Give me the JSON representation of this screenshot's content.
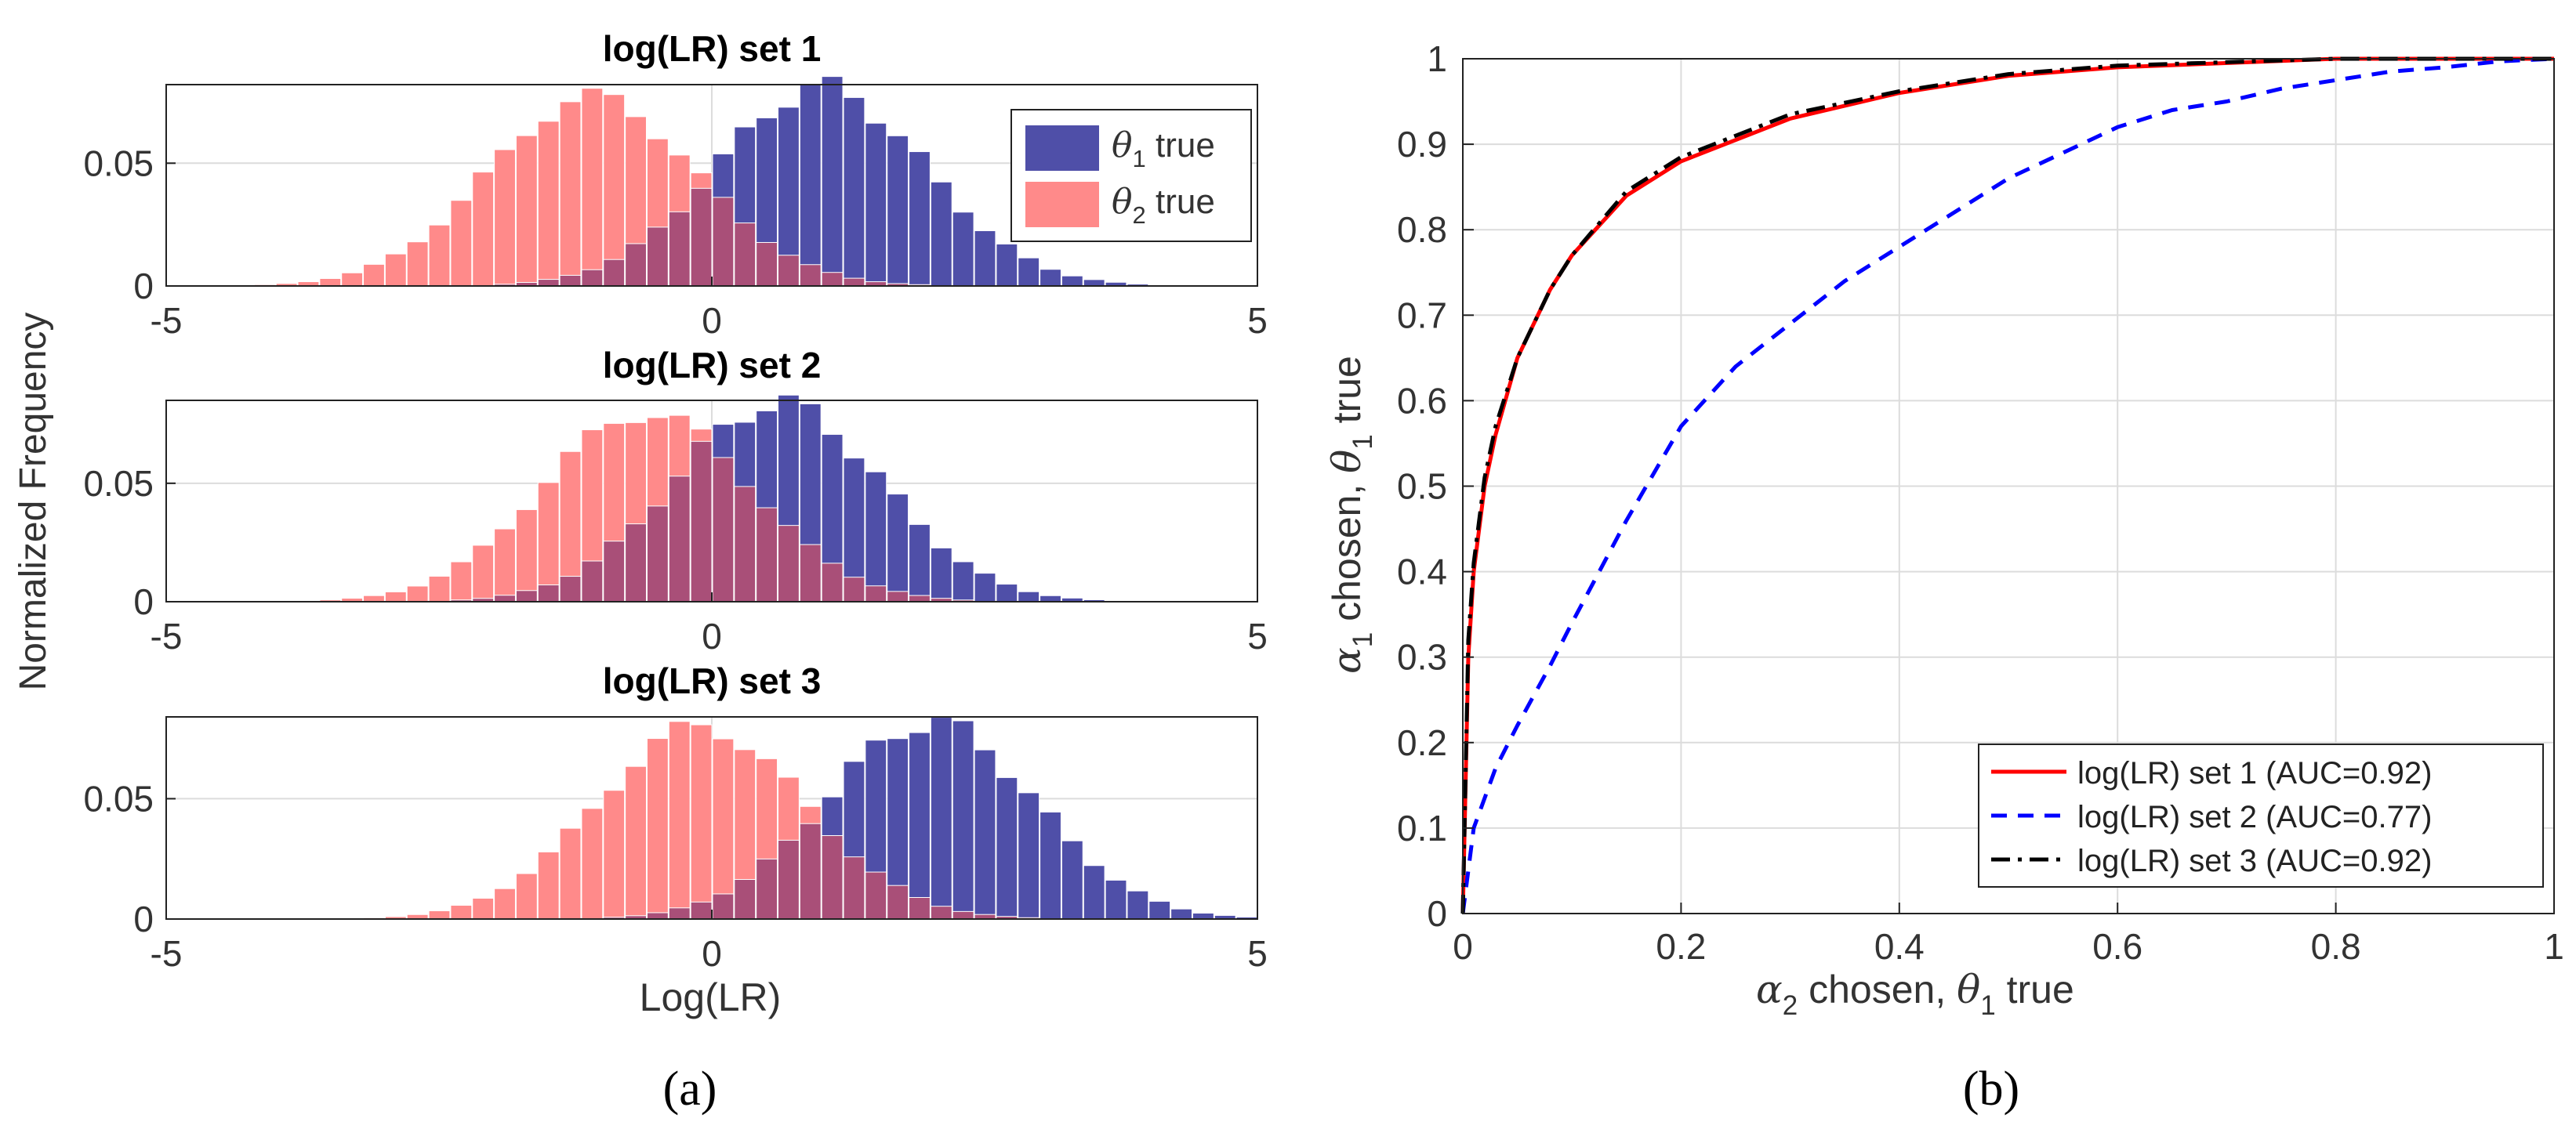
{
  "figure": {
    "panel_a_label": "(a)",
    "panel_b_label": "(b)",
    "ylabel_shared_a": "Normalized Frequency",
    "xlabel_a": "Log(LR)"
  },
  "colors": {
    "theta1": "#4f4fa8",
    "theta2": "#ff8a8a",
    "overlap": "#a94f78",
    "set1": "#ff0000",
    "set2": "#0000ff",
    "set3": "#000000",
    "grid": "#dcdcdc"
  },
  "chart_data": [
    {
      "type": "bar",
      "title": "log(LR) set 1",
      "xlim": [
        -5,
        5
      ],
      "ylim": [
        0,
        0.082
      ],
      "xticks": [
        -5,
        0,
        5
      ],
      "yticks": [
        0,
        0.05
      ],
      "ytick_labels": [
        "0",
        "0.05"
      ],
      "bin_width": 0.2,
      "legend": [
        "θ1 true",
        "θ2 true"
      ],
      "legend_position": "top-right",
      "series": [
        {
          "name": "θ1 true",
          "mean": 1.0,
          "sd": 0.95,
          "peak": 0.081
        },
        {
          "name": "θ2 true",
          "mean": -1.1,
          "sd": 0.95,
          "peak": 0.077
        }
      ]
    },
    {
      "type": "bar",
      "title": "log(LR) set 2",
      "xlim": [
        -5,
        5
      ],
      "ylim": [
        0,
        0.085
      ],
      "xticks": [
        -5,
        0,
        5
      ],
      "yticks": [
        0,
        0.05
      ],
      "ytick_labels": [
        "0",
        "0.05"
      ],
      "bin_width": 0.2,
      "series": [
        {
          "name": "θ1 true",
          "mean": 0.6,
          "sd": 0.95,
          "peak": 0.084
        },
        {
          "name": "θ2 true",
          "mean": -0.6,
          "sd": 0.95,
          "peak": 0.08
        }
      ]
    },
    {
      "type": "bar",
      "title": "log(LR) set 3",
      "xlim": [
        -5,
        5
      ],
      "ylim": [
        0,
        0.084
      ],
      "xticks": [
        -5,
        0,
        5
      ],
      "yticks": [
        0,
        0.05
      ],
      "ytick_labels": [
        "0",
        "0.05"
      ],
      "bin_width": 0.2,
      "series": [
        {
          "name": "θ1 true",
          "mean": 2.0,
          "sd": 0.95,
          "peak": 0.082
        },
        {
          "name": "θ2 true",
          "mean": -0.1,
          "sd": 0.95,
          "peak": 0.08
        }
      ]
    },
    {
      "type": "line",
      "title": "",
      "xlabel": "α2 chosen, θ1 true",
      "ylabel": "α1 chosen, θ1 true",
      "xlim": [
        0,
        1
      ],
      "ylim": [
        0,
        1
      ],
      "xticks": [
        0,
        0.2,
        0.4,
        0.6,
        0.8,
        1
      ],
      "xtick_labels": [
        "0",
        "0.2",
        "0.4",
        "0.6",
        "0.8",
        "1"
      ],
      "yticks": [
        0,
        0.1,
        0.2,
        0.3,
        0.4,
        0.5,
        0.6,
        0.7,
        0.8,
        0.9,
        1
      ],
      "ytick_labels": [
        "0",
        "0.1",
        "0.2",
        "0.3",
        "0.4",
        "0.5",
        "0.6",
        "0.7",
        "0.8",
        "0.9",
        "1"
      ],
      "grid": true,
      "legend_position": "bottom-right",
      "series": [
        {
          "name": "log(LR) set 1 (AUC=0.92)",
          "style": "solid",
          "x": [
            0,
            0.005,
            0.01,
            0.02,
            0.03,
            0.05,
            0.08,
            0.1,
            0.15,
            0.2,
            0.3,
            0.4,
            0.5,
            0.6,
            0.8,
            1
          ],
          "y": [
            0,
            0.3,
            0.4,
            0.5,
            0.56,
            0.65,
            0.73,
            0.77,
            0.84,
            0.88,
            0.93,
            0.96,
            0.98,
            0.99,
            1.0,
            1.0
          ]
        },
        {
          "name": "log(LR) set 2 (AUC=0.77)",
          "style": "dashed",
          "x": [
            0,
            0.01,
            0.03,
            0.05,
            0.08,
            0.1,
            0.15,
            0.2,
            0.25,
            0.3,
            0.35,
            0.4,
            0.45,
            0.5,
            0.55,
            0.6,
            0.65,
            0.7,
            0.75,
            0.8,
            0.85,
            0.9,
            0.95,
            1
          ],
          "y": [
            0,
            0.1,
            0.17,
            0.22,
            0.29,
            0.34,
            0.46,
            0.57,
            0.64,
            0.69,
            0.74,
            0.78,
            0.82,
            0.86,
            0.89,
            0.92,
            0.94,
            0.95,
            0.965,
            0.975,
            0.985,
            0.99,
            0.997,
            1.0
          ]
        },
        {
          "name": "log(LR) set 3 (AUC=0.92)",
          "style": "dashdot",
          "x": [
            0,
            0.005,
            0.01,
            0.02,
            0.03,
            0.05,
            0.08,
            0.1,
            0.15,
            0.2,
            0.3,
            0.4,
            0.5,
            0.6,
            0.8,
            1
          ],
          "y": [
            0,
            0.32,
            0.41,
            0.51,
            0.57,
            0.65,
            0.73,
            0.77,
            0.845,
            0.885,
            0.935,
            0.962,
            0.982,
            0.992,
            1.0,
            1.0
          ]
        }
      ]
    }
  ]
}
